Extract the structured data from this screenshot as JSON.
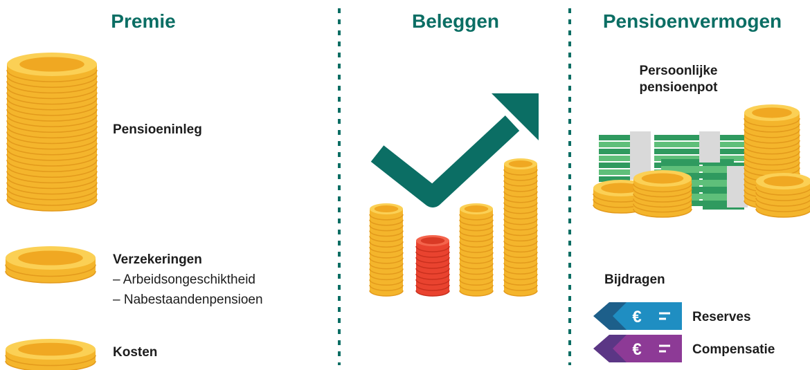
{
  "columns": [
    {
      "title": "Premie"
    },
    {
      "title": "Beleggen"
    },
    {
      "title": "Pensioenvermogen"
    }
  ],
  "premie": {
    "items": [
      {
        "label": "Pensioeninleg"
      },
      {
        "label": "Verzekeringen",
        "lines": [
          "– Arbeidsongeschiktheid",
          "– Nabestaandenpensioen"
        ]
      },
      {
        "label": "Kosten"
      }
    ]
  },
  "pensioenvermogen": {
    "pot_label": [
      "Persoonlijke",
      "pensioenpot"
    ],
    "bijdragen": "Bijdragen",
    "tags": [
      {
        "icon": "€",
        "label": "Reserves"
      },
      {
        "icon": "€",
        "label": "Compensatie"
      }
    ]
  }
}
